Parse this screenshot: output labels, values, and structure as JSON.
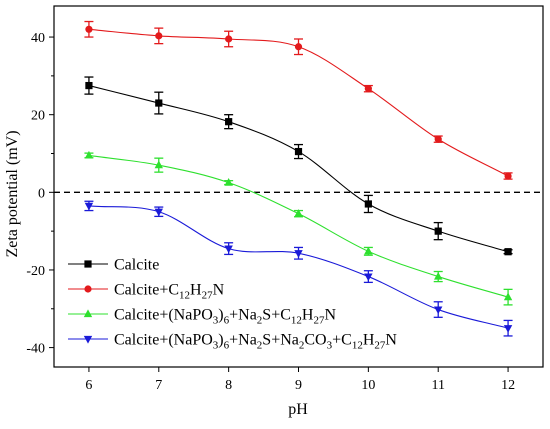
{
  "chart_data": {
    "type": "line",
    "xlabel": "pH",
    "ylabel": "Zeta potential (mV)",
    "x": [
      6,
      7,
      8,
      9,
      10,
      11,
      12
    ],
    "xlim": [
      5.5,
      12.5
    ],
    "ylim": [
      -45,
      48
    ],
    "xticks": [
      "6",
      "7",
      "8",
      "9",
      "10",
      "11",
      "12"
    ],
    "yticks": [
      40,
      20,
      0,
      -20,
      -40
    ],
    "ytick_labels": [
      "40",
      "20",
      "0",
      "-20",
      "-40"
    ],
    "zero_line": "dashed",
    "legend_position": "bottom-left",
    "series": [
      {
        "name": "Calcite",
        "legend_parts": [
          {
            "t": "Calcite",
            "sub": false
          }
        ],
        "color": "#000000",
        "marker": "square",
        "values": [
          27.5,
          23.0,
          18.2,
          10.5,
          -3.0,
          -10.0,
          -15.3
        ],
        "errors": [
          2.2,
          2.8,
          1.8,
          1.8,
          2.2,
          2.2,
          0.5
        ]
      },
      {
        "name": "Calcite+C12H27N",
        "legend_parts": [
          {
            "t": "Calcite+C",
            "sub": false
          },
          {
            "t": "12",
            "sub": true
          },
          {
            "t": "H",
            "sub": false
          },
          {
            "t": "27",
            "sub": true
          },
          {
            "t": "N",
            "sub": false
          }
        ],
        "color": "#e31a1c",
        "marker": "circle",
        "values": [
          42.0,
          40.3,
          39.5,
          37.5,
          26.7,
          13.7,
          4.2
        ],
        "errors": [
          2.0,
          2.0,
          2.0,
          2.0,
          0.8,
          0.8,
          0.8
        ]
      },
      {
        "name": "Calcite+(NaPO3)6+Na2S+C12H27N",
        "legend_parts": [
          {
            "t": "Calcite+(NaPO",
            "sub": false
          },
          {
            "t": "3",
            "sub": true
          },
          {
            "t": ")",
            "sub": false
          },
          {
            "t": "6",
            "sub": true
          },
          {
            "t": "+Na",
            "sub": false
          },
          {
            "t": "2",
            "sub": true
          },
          {
            "t": "S+C",
            "sub": false
          },
          {
            "t": "12",
            "sub": true
          },
          {
            "t": "H",
            "sub": false
          },
          {
            "t": "27",
            "sub": true
          },
          {
            "t": "N",
            "sub": false
          }
        ],
        "color": "#2ee02e",
        "marker": "triangle-up",
        "values": [
          9.5,
          7.0,
          2.5,
          -5.5,
          -15.2,
          -21.7,
          -27.0
        ],
        "errors": [
          0.6,
          1.8,
          0.5,
          0.8,
          1.0,
          1.3,
          2.0
        ]
      },
      {
        "name": "Calcite+(NaPO3)6+Na2S+Na2CO3+C12H27N",
        "legend_parts": [
          {
            "t": "Calcite+(NaPO",
            "sub": false
          },
          {
            "t": "3",
            "sub": true
          },
          {
            "t": ")",
            "sub": false
          },
          {
            "t": "6",
            "sub": true
          },
          {
            "t": "+Na",
            "sub": false
          },
          {
            "t": "2",
            "sub": true
          },
          {
            "t": "S+Na",
            "sub": false
          },
          {
            "t": "2",
            "sub": true
          },
          {
            "t": "CO",
            "sub": false
          },
          {
            "t": "3",
            "sub": true
          },
          {
            "t": "+C",
            "sub": false
          },
          {
            "t": "12",
            "sub": true
          },
          {
            "t": "H",
            "sub": false
          },
          {
            "t": "27",
            "sub": true
          },
          {
            "t": "N",
            "sub": false
          }
        ],
        "color": "#1a1ad8",
        "marker": "triangle-down",
        "values": [
          -3.5,
          -5.0,
          -14.5,
          -15.7,
          -21.7,
          -30.2,
          -35.0
        ],
        "errors": [
          1.2,
          1.2,
          1.5,
          1.5,
          1.5,
          2.0,
          2.0
        ]
      }
    ]
  }
}
